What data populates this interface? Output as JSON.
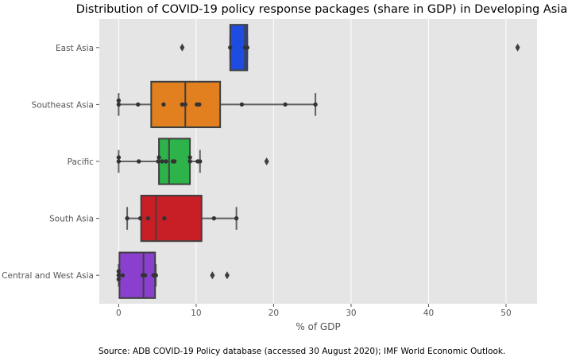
{
  "chart_data": {
    "type": "box",
    "title": "Distribution of COVID-19 policy response packages (share in GDP) in Developing Asia",
    "xlabel": "% of GDP",
    "ylabel": "",
    "xlim": [
      -2.5,
      54
    ],
    "xticks": [
      0,
      10,
      20,
      30,
      40,
      50
    ],
    "grid": true,
    "categories": [
      "East Asia",
      "Southeast Asia",
      "Pacific",
      "South Asia",
      "Central and West Asia"
    ],
    "colors": [
      "#1f4ce0",
      "#e27f1f",
      "#2eb34a",
      "#c81e26",
      "#8a3fcf"
    ],
    "boxes": [
      {
        "q1": 14.4,
        "median": 16.3,
        "q3": 16.6,
        "whislo": 14.4,
        "whishi": 16.6,
        "outliers": [
          8.2,
          51.5
        ],
        "points": [
          14.4,
          16.3,
          16.6
        ]
      },
      {
        "q1": 4.2,
        "median": 8.6,
        "q3": 13.1,
        "whislo": 0,
        "whishi": 25.4,
        "outliers": [],
        "points": [
          0,
          0,
          2.5,
          5.8,
          8.2,
          8.6,
          10.1,
          10.4,
          15.9,
          21.5,
          25.4
        ]
      },
      {
        "q1": 5.2,
        "median": 6.5,
        "q3": 9.2,
        "whislo": 0,
        "whishi": 10.5,
        "outliers": [
          19.1
        ],
        "points": [
          0,
          0,
          2.6,
          5.1,
          5.2,
          5.6,
          6.1,
          7.0,
          7.2,
          9.2,
          9.2,
          10.2,
          10.5
        ]
      },
      {
        "q1": 2.9,
        "median": 4.8,
        "q3": 10.7,
        "whislo": 1.1,
        "whishi": 15.2,
        "outliers": [],
        "points": [
          1.1,
          2.8,
          3.8,
          5.9,
          12.3,
          15.2
        ]
      },
      {
        "q1": 0.1,
        "median": 3.2,
        "q3": 4.7,
        "whislo": 0,
        "whishi": 4.8,
        "outliers": [
          12.1,
          14.0
        ],
        "points": [
          0,
          0,
          0,
          0.5,
          3.1,
          3.4,
          4.5,
          4.8
        ]
      }
    ]
  },
  "source": "Source: ADB COVID-19 Policy database (accessed 30 August 2020); IMF World Economic Outlook."
}
